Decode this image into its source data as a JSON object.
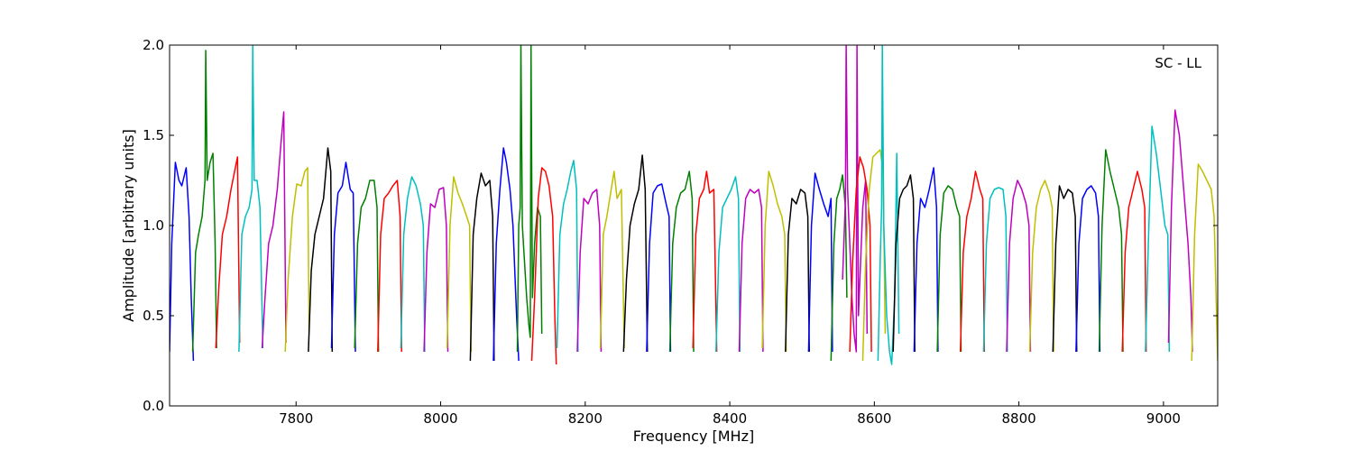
{
  "chart_data": {
    "type": "line",
    "title": "",
    "annotation": "SC - LL",
    "xlabel": "Frequency [MHz]",
    "ylabel": "Amplitude [arbitrary units]",
    "xlim": [
      7625,
      9075
    ],
    "ylim": [
      0.0,
      2.0
    ],
    "xticks": [
      7800,
      8000,
      8200,
      8400,
      8600,
      8800,
      9000
    ],
    "xtick_labels": [
      "7800",
      "8000",
      "8200",
      "8400",
      "8600",
      "8800",
      "9000"
    ],
    "yticks": [
      0.0,
      0.5,
      1.0,
      1.5,
      2.0
    ],
    "ytick_labels": [
      "0.0",
      "0.5",
      "1.0",
      "1.5",
      "2.0"
    ],
    "grid": false,
    "color_cycle": [
      "#0000ff",
      "#008000",
      "#ff0000",
      "#00bfbf",
      "#bf00bf",
      "#bfbf00",
      "#000000"
    ],
    "channel_width_mhz": 32,
    "series": [
      {
        "color": "#0000ff",
        "x": [
          7625,
          7628,
          7633,
          7638,
          7642,
          7648,
          7652,
          7655,
          7658
        ],
        "y": [
          0.3,
          0.9,
          1.35,
          1.25,
          1.22,
          1.32,
          1.05,
          0.6,
          0.25
        ]
      },
      {
        "color": "#008000",
        "x": [
          7657,
          7661,
          7665,
          7670,
          7674,
          7675,
          7677,
          7681,
          7685,
          7688,
          7690
        ],
        "y": [
          0.3,
          0.85,
          0.95,
          1.05,
          1.25,
          1.97,
          1.25,
          1.35,
          1.4,
          0.9,
          0.32
        ]
      },
      {
        "color": "#ff0000",
        "x": [
          7689,
          7693,
          7698,
          7704,
          7710,
          7715,
          7719,
          7722
        ],
        "y": [
          0.32,
          0.65,
          0.95,
          1.05,
          1.2,
          1.3,
          1.38,
          0.35
        ]
      },
      {
        "color": "#00bfbf",
        "x": [
          7721,
          7725,
          7730,
          7735,
          7739,
          7740,
          7742,
          7746,
          7750,
          7754
        ],
        "y": [
          0.3,
          0.95,
          1.05,
          1.1,
          1.2,
          2.0,
          1.25,
          1.25,
          1.1,
          0.32
        ]
      },
      {
        "color": "#bf00bf",
        "x": [
          7753,
          7757,
          7762,
          7768,
          7774,
          7779,
          7783,
          7786
        ],
        "y": [
          0.32,
          0.6,
          0.9,
          1.0,
          1.2,
          1.45,
          1.63,
          0.35
        ]
      },
      {
        "color": "#bfbf00",
        "x": [
          7785,
          7789,
          7795,
          7801,
          7807,
          7812,
          7816,
          7818
        ],
        "y": [
          0.3,
          0.7,
          1.05,
          1.23,
          1.22,
          1.3,
          1.32,
          0.4
        ]
      },
      {
        "color": "#000000",
        "x": [
          7817,
          7821,
          7826,
          7832,
          7838,
          7844,
          7848,
          7850
        ],
        "y": [
          0.3,
          0.75,
          0.95,
          1.05,
          1.15,
          1.43,
          1.3,
          0.3
        ]
      },
      {
        "color": "#0000ff",
        "x": [
          7849,
          7853,
          7858,
          7864,
          7869,
          7875,
          7879,
          7882
        ],
        "y": [
          0.32,
          0.95,
          1.18,
          1.22,
          1.35,
          1.2,
          1.18,
          0.3
        ]
      },
      {
        "color": "#008000",
        "x": [
          7881,
          7885,
          7890,
          7896,
          7902,
          7908,
          7912,
          7914
        ],
        "y": [
          0.32,
          0.9,
          1.1,
          1.15,
          1.25,
          1.25,
          1.1,
          0.3
        ]
      },
      {
        "color": "#ff0000",
        "x": [
          7913,
          7917,
          7922,
          7928,
          7934,
          7940,
          7944,
          7946
        ],
        "y": [
          0.3,
          0.95,
          1.15,
          1.18,
          1.22,
          1.25,
          1.05,
          0.3
        ]
      },
      {
        "color": "#00bfbf",
        "x": [
          7945,
          7949,
          7954,
          7960,
          7966,
          7972,
          7976,
          7978
        ],
        "y": [
          0.32,
          0.95,
          1.15,
          1.27,
          1.22,
          1.12,
          1.0,
          0.3
        ]
      },
      {
        "color": "#bf00bf",
        "x": [
          7977,
          7981,
          7986,
          7992,
          7998,
          8004,
          8008,
          8010
        ],
        "y": [
          0.3,
          0.85,
          1.12,
          1.1,
          1.2,
          1.21,
          1.0,
          0.3
        ]
      },
      {
        "color": "#bfbf00",
        "x": [
          8009,
          8013,
          8018,
          8024,
          8030,
          8036,
          8040,
          8042
        ],
        "y": [
          0.32,
          1.0,
          1.27,
          1.18,
          1.12,
          1.05,
          1.0,
          0.3
        ]
      },
      {
        "color": "#000000",
        "x": [
          8041,
          8045,
          8050,
          8056,
          8062,
          8068,
          8072,
          8074
        ],
        "y": [
          0.25,
          0.95,
          1.15,
          1.29,
          1.22,
          1.25,
          1.05,
          0.25
        ]
      },
      {
        "color": "#0000ff",
        "x": [
          8073,
          8077,
          8082,
          8087,
          8091,
          8096,
          8100,
          8105,
          8108
        ],
        "y": [
          0.25,
          0.9,
          1.2,
          1.43,
          1.35,
          1.2,
          1.0,
          0.5,
          0.25
        ]
      },
      {
        "color": "#008000",
        "x": [
          8106,
          8108,
          8110,
          8111,
          8113,
          8116,
          8119,
          8122,
          8124,
          8125,
          8127,
          8130,
          8134,
          8138,
          8140
        ],
        "y": [
          0.3,
          1.0,
          1.1,
          2.0,
          1.0,
          0.8,
          0.6,
          0.45,
          0.38,
          2.0,
          0.6,
          0.9,
          1.1,
          1.05,
          0.4
        ]
      },
      {
        "color": "#ff0000",
        "x": [
          8126,
          8130,
          8135,
          8140,
          8145,
          8150,
          8155,
          8158,
          8160
        ],
        "y": [
          0.25,
          0.6,
          1.15,
          1.32,
          1.3,
          1.22,
          1.05,
          0.5,
          0.23
        ]
      },
      {
        "color": "#00bfbf",
        "x": [
          8161,
          8165,
          8170,
          8175,
          8180,
          8184,
          8188,
          8190
        ],
        "y": [
          0.32,
          0.95,
          1.12,
          1.2,
          1.3,
          1.36,
          1.2,
          0.3
        ]
      },
      {
        "color": "#bf00bf",
        "x": [
          8189,
          8193,
          8198,
          8204,
          8210,
          8216,
          8220,
          8222
        ],
        "y": [
          0.3,
          0.85,
          1.15,
          1.12,
          1.18,
          1.2,
          1.0,
          0.3
        ]
      },
      {
        "color": "#bfbf00",
        "x": [
          8221,
          8225,
          8230,
          8236,
          8240,
          8244,
          8250,
          8254
        ],
        "y": [
          0.32,
          0.95,
          1.05,
          1.2,
          1.3,
          1.15,
          1.2,
          0.32
        ]
      },
      {
        "color": "#000000",
        "x": [
          8253,
          8257,
          8262,
          8268,
          8274,
          8279,
          8283,
          8286
        ],
        "y": [
          0.3,
          0.7,
          1.0,
          1.12,
          1.2,
          1.39,
          1.2,
          0.3
        ]
      },
      {
        "color": "#0000ff",
        "x": [
          8285,
          8289,
          8294,
          8300,
          8306,
          8312,
          8316,
          8318
        ],
        "y": [
          0.3,
          0.9,
          1.18,
          1.22,
          1.23,
          1.12,
          1.05,
          0.3
        ]
      },
      {
        "color": "#008000",
        "x": [
          8317,
          8321,
          8326,
          8332,
          8338,
          8344,
          8348,
          8350
        ],
        "y": [
          0.3,
          0.9,
          1.1,
          1.18,
          1.2,
          1.3,
          1.15,
          0.3
        ]
      },
      {
        "color": "#ff0000",
        "x": [
          8349,
          8353,
          8358,
          8364,
          8368,
          8372,
          8378,
          8382
        ],
        "y": [
          0.32,
          0.95,
          1.15,
          1.2,
          1.3,
          1.18,
          1.2,
          0.3
        ]
      },
      {
        "color": "#00bfbf",
        "x": [
          8381,
          8385,
          8390,
          8396,
          8402,
          8408,
          8412,
          8414
        ],
        "y": [
          0.3,
          0.85,
          1.1,
          1.15,
          1.2,
          1.27,
          1.15,
          0.3
        ]
      },
      {
        "color": "#bf00bf",
        "x": [
          8413,
          8417,
          8422,
          8428,
          8434,
          8440,
          8444,
          8446
        ],
        "y": [
          0.3,
          0.9,
          1.15,
          1.2,
          1.18,
          1.2,
          1.1,
          0.3
        ]
      },
      {
        "color": "#bfbf00",
        "x": [
          8445,
          8449,
          8454,
          8460,
          8466,
          8472,
          8476,
          8478
        ],
        "y": [
          0.32,
          1.0,
          1.3,
          1.22,
          1.12,
          1.05,
          0.95,
          0.3
        ]
      },
      {
        "color": "#000000",
        "x": [
          8477,
          8481,
          8486,
          8492,
          8498,
          8504,
          8508,
          8510
        ],
        "y": [
          0.3,
          0.95,
          1.15,
          1.12,
          1.2,
          1.18,
          1.05,
          0.3
        ]
      },
      {
        "color": "#0000ff",
        "x": [
          8509,
          8513,
          8518,
          8524,
          8530,
          8536,
          8540,
          8542
        ],
        "y": [
          0.3,
          1.0,
          1.29,
          1.2,
          1.12,
          1.05,
          1.15,
          0.3
        ]
      },
      {
        "color": "#008000",
        "x": [
          8540,
          8544,
          8548,
          8552,
          8556,
          8560,
          8562
        ],
        "y": [
          0.25,
          0.9,
          1.15,
          1.2,
          1.28,
          1.1,
          0.6
        ]
      },
      {
        "color": "#bf00bf",
        "x": [
          8556,
          8560,
          8561,
          8563,
          8566,
          8569,
          8572,
          8575,
          8576,
          8578,
          8581,
          8584,
          8588,
          8590
        ],
        "y": [
          0.7,
          1.15,
          2.0,
          1.2,
          0.9,
          0.6,
          0.4,
          0.3,
          2.0,
          0.5,
          0.8,
          1.1,
          1.25,
          0.4
        ]
      },
      {
        "color": "#ff0000",
        "x": [
          8566,
          8570,
          8575,
          8580,
          8585,
          8590,
          8594,
          8596
        ],
        "y": [
          0.3,
          0.8,
          1.2,
          1.38,
          1.32,
          1.2,
          1.0,
          0.3
        ]
      },
      {
        "color": "#bfbf00",
        "x": [
          8584,
          8588,
          8593,
          8598,
          8603,
          8608,
          8612,
          8615
        ],
        "y": [
          0.25,
          0.8,
          1.2,
          1.38,
          1.4,
          1.42,
          1.3,
          0.4
        ]
      },
      {
        "color": "#00bfbf",
        "x": [
          8605,
          8608,
          8610,
          8611,
          8613,
          8617,
          8621,
          8624,
          8628,
          8631,
          8634
        ],
        "y": [
          0.25,
          0.8,
          1.1,
          2.0,
          1.0,
          0.5,
          0.3,
          0.23,
          0.6,
          1.4,
          0.4
        ]
      },
      {
        "color": "#000000",
        "x": [
          8626,
          8630,
          8635,
          8640,
          8645,
          8650,
          8654,
          8656
        ],
        "y": [
          0.3,
          0.9,
          1.15,
          1.2,
          1.22,
          1.28,
          1.15,
          0.3
        ]
      },
      {
        "color": "#0000ff",
        "x": [
          8655,
          8659,
          8664,
          8670,
          8676,
          8682,
          8686,
          8688
        ],
        "y": [
          0.3,
          0.9,
          1.15,
          1.1,
          1.2,
          1.32,
          1.1,
          0.3
        ]
      },
      {
        "color": "#008000",
        "x": [
          8687,
          8691,
          8696,
          8702,
          8708,
          8714,
          8718,
          8720
        ],
        "y": [
          0.3,
          0.95,
          1.18,
          1.22,
          1.2,
          1.1,
          1.05,
          0.3
        ]
      },
      {
        "color": "#ff0000",
        "x": [
          8719,
          8723,
          8728,
          8734,
          8740,
          8746,
          8750,
          8752
        ],
        "y": [
          0.3,
          0.85,
          1.05,
          1.15,
          1.3,
          1.2,
          1.15,
          0.3
        ]
      },
      {
        "color": "#00bfbf",
        "x": [
          8751,
          8755,
          8760,
          8766,
          8772,
          8778,
          8782,
          8784
        ],
        "y": [
          0.3,
          0.9,
          1.15,
          1.2,
          1.21,
          1.2,
          1.05,
          0.3
        ]
      },
      {
        "color": "#bf00bf",
        "x": [
          8783,
          8787,
          8792,
          8798,
          8804,
          8810,
          8814,
          8816
        ],
        "y": [
          0.3,
          0.9,
          1.15,
          1.25,
          1.2,
          1.12,
          1.0,
          0.3
        ]
      },
      {
        "color": "#bfbf00",
        "x": [
          8815,
          8819,
          8824,
          8830,
          8836,
          8842,
          8846,
          8848
        ],
        "y": [
          0.3,
          0.85,
          1.1,
          1.2,
          1.25,
          1.18,
          1.1,
          0.3
        ]
      },
      {
        "color": "#000000",
        "x": [
          8847,
          8851,
          8856,
          8862,
          8868,
          8874,
          8878,
          8880
        ],
        "y": [
          0.3,
          0.9,
          1.22,
          1.15,
          1.2,
          1.18,
          1.05,
          0.3
        ]
      },
      {
        "color": "#0000ff",
        "x": [
          8879,
          8883,
          8888,
          8894,
          8900,
          8906,
          8910,
          8912
        ],
        "y": [
          0.3,
          0.9,
          1.15,
          1.2,
          1.22,
          1.18,
          1.05,
          0.3
        ]
      },
      {
        "color": "#008000",
        "x": [
          8911,
          8915,
          8920,
          8926,
          8932,
          8938,
          8942,
          8944
        ],
        "y": [
          0.3,
          1.0,
          1.42,
          1.3,
          1.2,
          1.1,
          0.95,
          0.3
        ]
      },
      {
        "color": "#ff0000",
        "x": [
          8943,
          8947,
          8952,
          8958,
          8964,
          8970,
          8974,
          8976
        ],
        "y": [
          0.3,
          0.85,
          1.1,
          1.2,
          1.3,
          1.2,
          1.1,
          0.3
        ]
      },
      {
        "color": "#00bfbf",
        "x": [
          8975,
          8979,
          8984,
          8990,
          8996,
          9002,
          9006,
          9008
        ],
        "y": [
          0.3,
          0.9,
          1.55,
          1.4,
          1.2,
          1.0,
          0.95,
          0.3
        ]
      },
      {
        "color": "#bf00bf",
        "x": [
          9007,
          9011,
          9016,
          9022,
          9028,
          9034,
          9038,
          9040
        ],
        "y": [
          0.35,
          1.1,
          1.64,
          1.5,
          1.2,
          0.9,
          0.6,
          0.3
        ]
      },
      {
        "color": "#bfbf00",
        "x": [
          9039,
          9043,
          9048,
          9054,
          9060,
          9066,
          9070,
          9075
        ],
        "y": [
          0.25,
          0.95,
          1.34,
          1.3,
          1.25,
          1.2,
          1.05,
          0.25
        ]
      }
    ]
  }
}
